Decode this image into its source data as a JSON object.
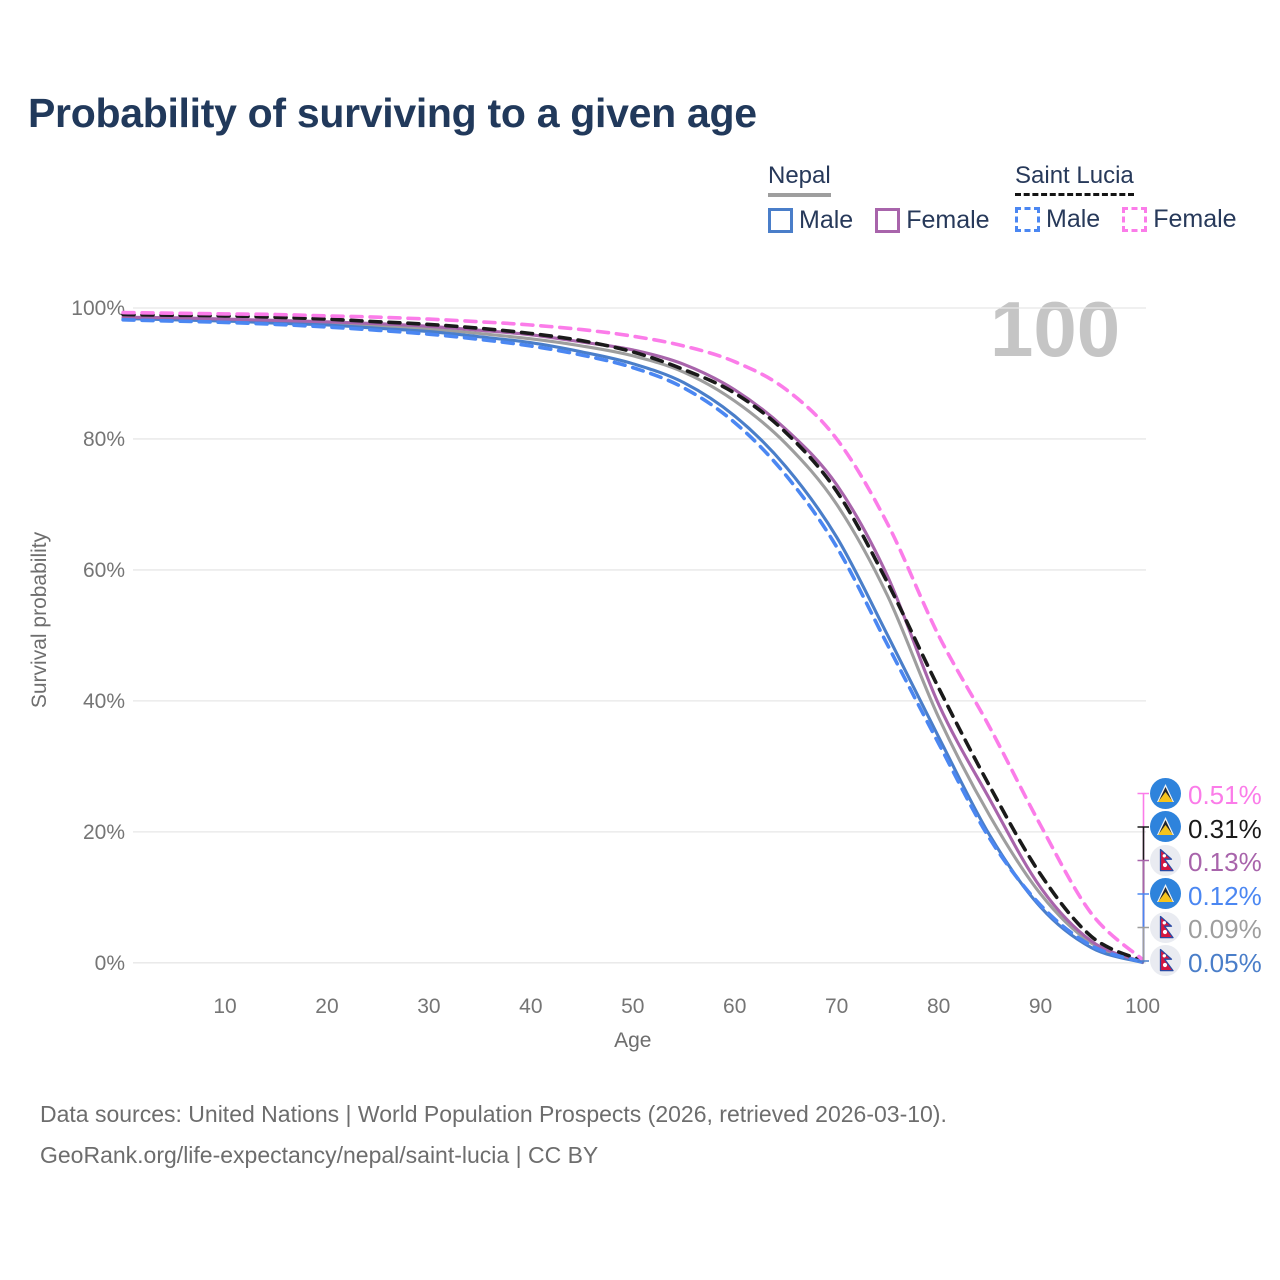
{
  "title": "Probability of surviving to a given age",
  "age_counter": "100",
  "legend": {
    "groups": [
      {
        "label": "Nepal",
        "line_style": "solid",
        "underline_color": "#9e9e9e",
        "items": [
          {
            "label": "Male",
            "color": "#4a7ec9",
            "dashed": false
          },
          {
            "label": "Female",
            "color": "#a864ab",
            "dashed": false
          }
        ]
      },
      {
        "label": "Saint Lucia",
        "line_style": "dashed",
        "underline_color": "#141414",
        "items": [
          {
            "label": "Male",
            "color": "#4b87f2",
            "dashed": true
          },
          {
            "label": "Female",
            "color": "#fb7ce9",
            "dashed": true
          }
        ]
      }
    ]
  },
  "chart_data": {
    "type": "line",
    "title": "Probability of surviving to a given age",
    "xlabel": "Age",
    "ylabel": "Survival probability",
    "xlim": [
      0,
      100
    ],
    "ylim": [
      0,
      100
    ],
    "x_ticks": [
      10,
      20,
      30,
      40,
      50,
      60,
      70,
      80,
      90,
      100
    ],
    "y_ticks": [
      0,
      20,
      40,
      60,
      80,
      100
    ],
    "y_tick_suffix": "%",
    "grid": "horizontal",
    "legend_position": "top-right",
    "ages": [
      0,
      5,
      10,
      15,
      20,
      25,
      30,
      35,
      40,
      45,
      50,
      55,
      60,
      65,
      70,
      75,
      80,
      85,
      90,
      95,
      100
    ],
    "series": [
      {
        "id": "saint-lucia-female",
        "name": "Saint Lucia Female",
        "color": "#fb7ce9",
        "dashed": true,
        "end_label": "0.51%",
        "values": [
          99.3,
          99.2,
          99.1,
          99.0,
          98.8,
          98.6,
          98.3,
          97.9,
          97.4,
          96.7,
          95.7,
          94.2,
          91.8,
          87.6,
          80.0,
          67.0,
          50.0,
          36.0,
          21.0,
          7.5,
          0.51
        ]
      },
      {
        "id": "saint-lucia-total",
        "name": "Saint Lucia",
        "color": "#1a1a1a",
        "dashed": true,
        "end_label": "0.31%",
        "values": [
          99.0,
          98.9,
          98.8,
          98.6,
          98.3,
          97.9,
          97.5,
          96.9,
          96.1,
          95.0,
          93.3,
          90.6,
          87.0,
          81.0,
          72.0,
          58.0,
          42.0,
          27.0,
          13.5,
          4.0,
          0.31
        ]
      },
      {
        "id": "nepal-female",
        "name": "Nepal Female",
        "color": "#a864ab",
        "dashed": false,
        "end_label": "0.13%",
        "values": [
          98.6,
          98.5,
          98.3,
          98.1,
          97.9,
          97.6,
          97.2,
          96.6,
          95.9,
          94.8,
          93.6,
          91.4,
          87.5,
          81.5,
          73.0,
          59.0,
          39.5,
          25.0,
          11.5,
          3.3,
          0.13
        ]
      },
      {
        "id": "saint-lucia-male",
        "name": "Saint Lucia Male",
        "color": "#4b87f2",
        "dashed": true,
        "end_label": "0.12%",
        "values": [
          98.2,
          98.0,
          97.8,
          97.5,
          97.1,
          96.6,
          96.0,
          95.2,
          94.2,
          92.8,
          90.9,
          87.8,
          82.5,
          74.5,
          63.5,
          48.5,
          33.5,
          19.0,
          8.8,
          2.6,
          0.12
        ]
      },
      {
        "id": "nepal-total",
        "name": "Nepal",
        "color": "#9e9e9e",
        "dashed": false,
        "end_label": "0.09%",
        "values": [
          98.5,
          98.3,
          98.1,
          97.9,
          97.6,
          97.2,
          96.8,
          96.1,
          95.3,
          94.2,
          92.7,
          90.2,
          85.8,
          79.3,
          70.0,
          56.0,
          37.5,
          22.5,
          10.5,
          3.0,
          0.09
        ]
      },
      {
        "id": "nepal-male",
        "name": "Nepal Male",
        "color": "#4a7ec9",
        "dashed": false,
        "end_label": "0.05%",
        "values": [
          98.4,
          98.2,
          98.0,
          97.7,
          97.4,
          96.9,
          96.4,
          95.6,
          94.7,
          93.3,
          91.5,
          88.6,
          83.5,
          75.8,
          65.0,
          50.0,
          34.5,
          19.5,
          8.5,
          2.3,
          0.05
        ]
      }
    ]
  },
  "end_labels": [
    {
      "value": "0.51%",
      "color": "#fb7ce9",
      "flag": "saint-lucia"
    },
    {
      "value": "0.31%",
      "color": "#1a1a1a",
      "flag": "saint-lucia"
    },
    {
      "value": "0.13%",
      "color": "#a864ab",
      "flag": "nepal"
    },
    {
      "value": "0.12%",
      "color": "#4b87f2",
      "flag": "saint-lucia"
    },
    {
      "value": "0.09%",
      "color": "#9e9e9e",
      "flag": "nepal"
    },
    {
      "value": "0.05%",
      "color": "#4a7ec9",
      "flag": "nepal"
    }
  ],
  "footer": {
    "line1": "Data sources: United Nations | World Population Prospects (2026, retrieved 2026-03-10).",
    "line2": "GeoRank.org/life-expectancy/nepal/saint-lucia | CC BY"
  }
}
